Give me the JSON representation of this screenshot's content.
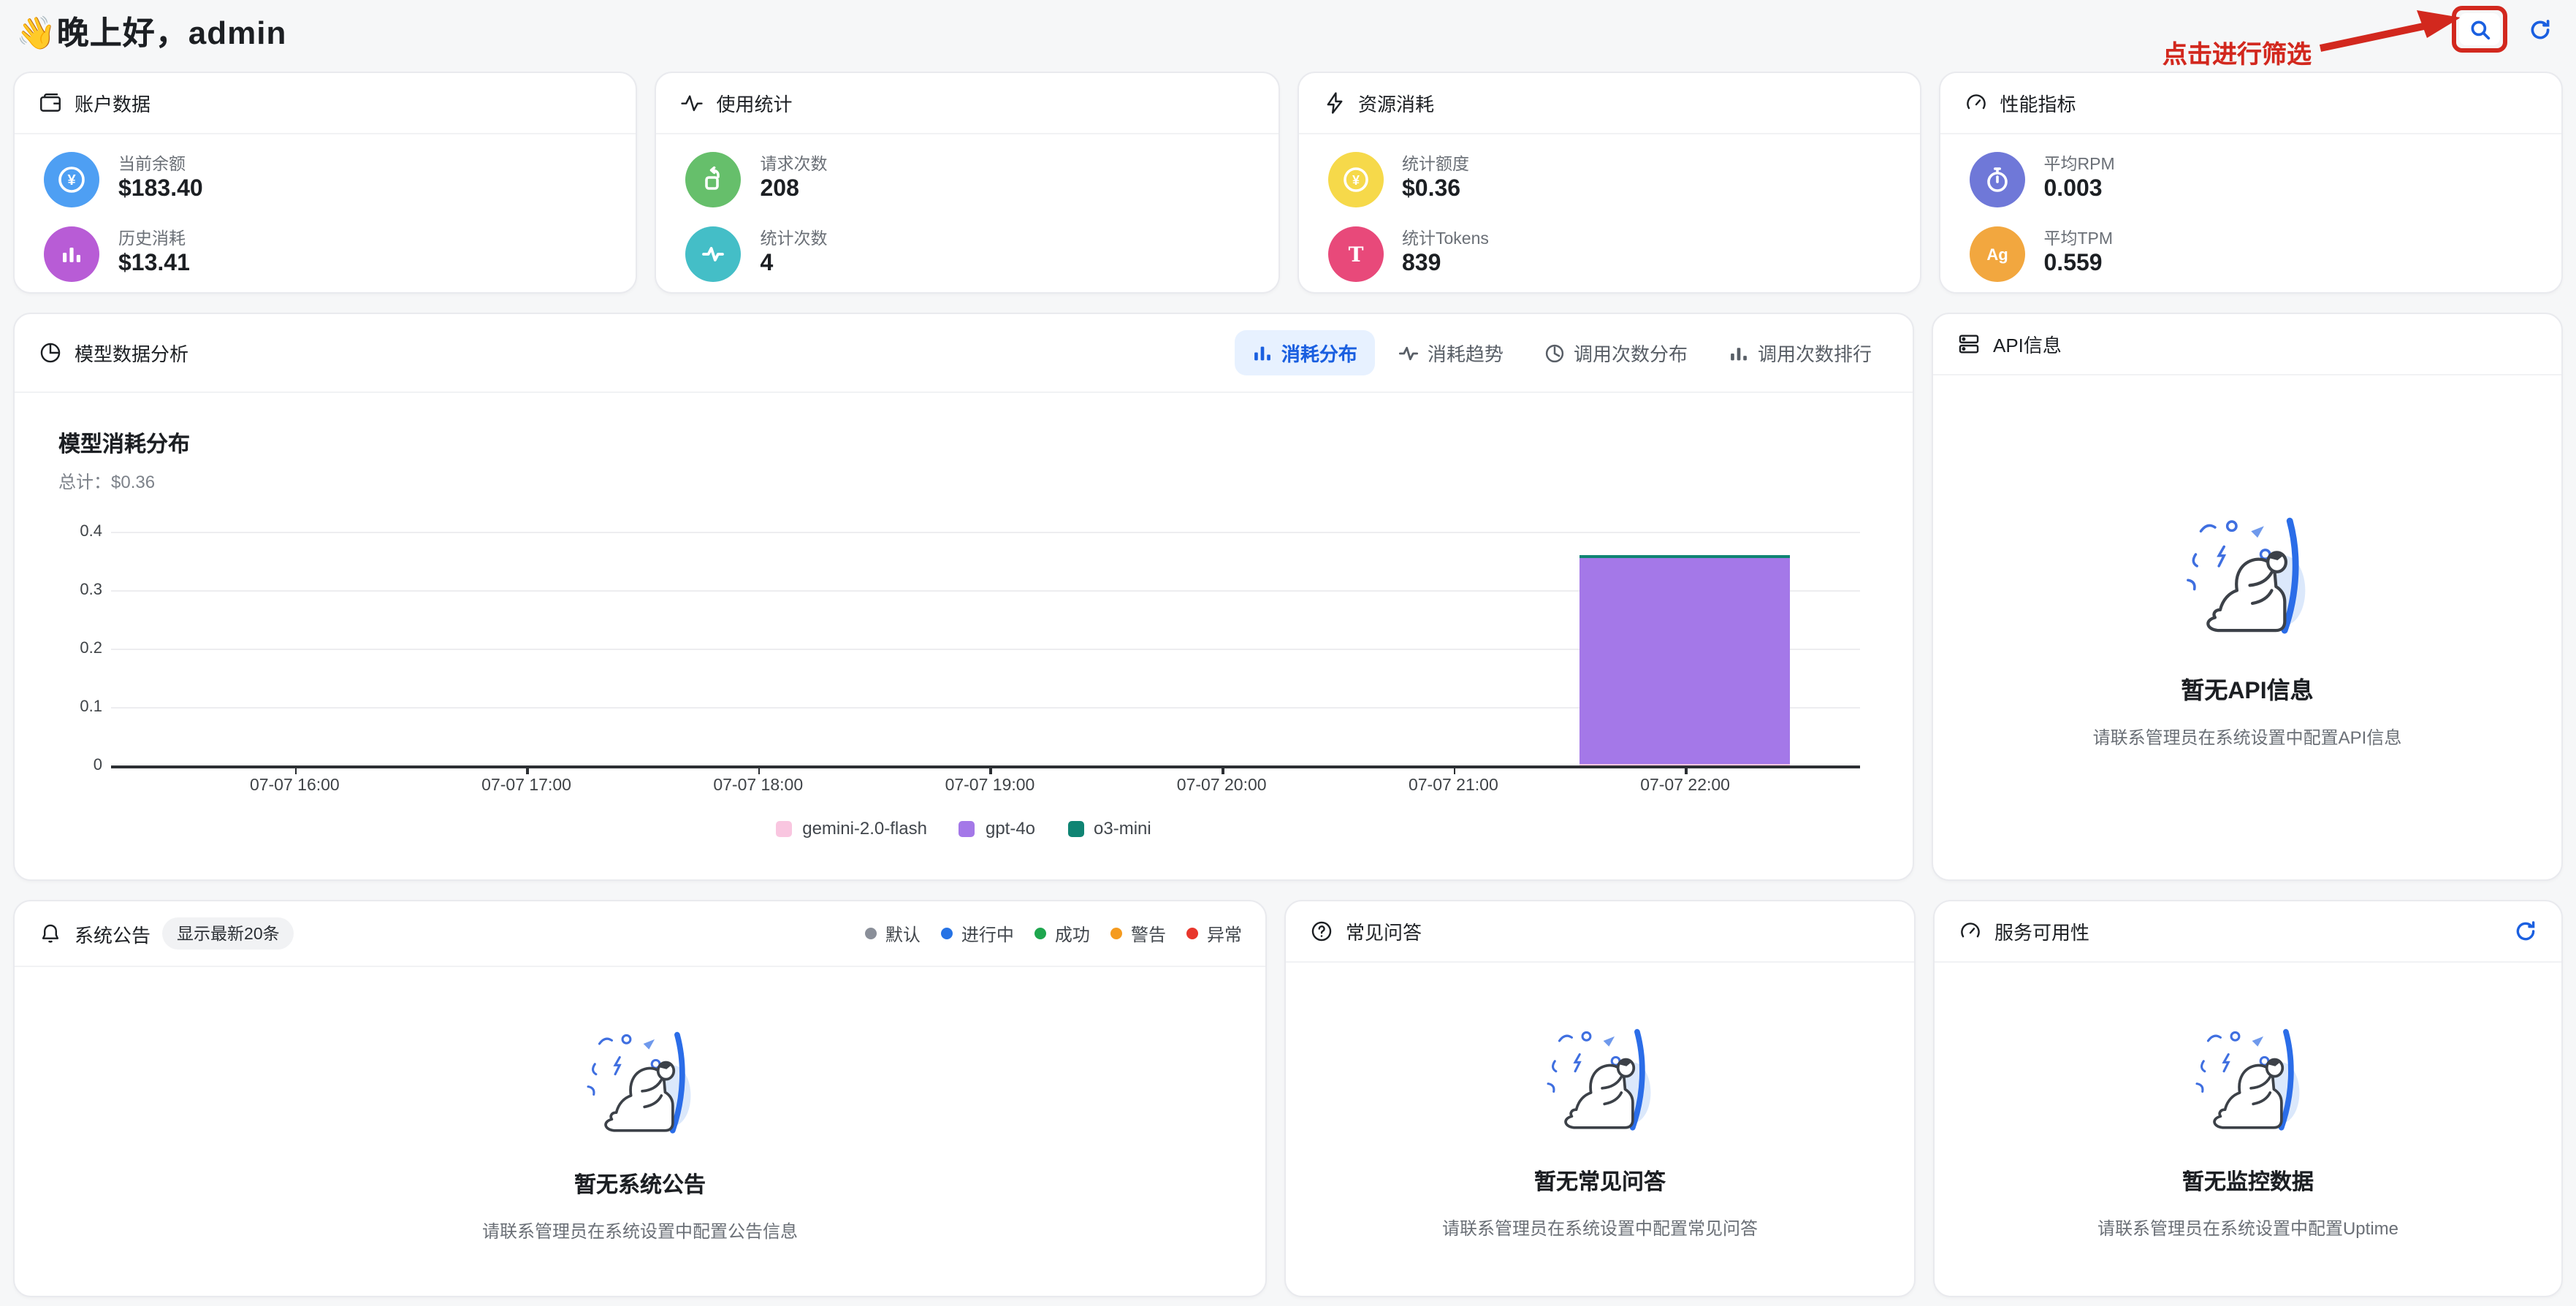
{
  "page": {
    "greeting": "👋晚上好，admin"
  },
  "topbar": {
    "annotation": "点击进行筛选",
    "accent_red": "#d2281e",
    "icon_blue": "#1a5fe0",
    "search_icon": "search-icon",
    "refresh_icon": "refresh-icon"
  },
  "stat_cards": [
    {
      "title": "账户数据",
      "icon": "wallet-icon",
      "items": [
        {
          "label": "当前余额",
          "value": "$183.40",
          "color": "#4e9ff3",
          "icon": "currency-circle-icon"
        },
        {
          "label": "历史消耗",
          "value": "$13.41",
          "color": "#b85cd6",
          "icon": "bar-chart-icon"
        }
      ]
    },
    {
      "title": "使用统计",
      "icon": "activity-icon",
      "items": [
        {
          "label": "请求次数",
          "value": "208",
          "color": "#66bf6b",
          "icon": "request-arrow-icon"
        },
        {
          "label": "统计次数",
          "value": "4",
          "color": "#44bec7",
          "icon": "pulse-icon"
        }
      ]
    },
    {
      "title": "资源消耗",
      "icon": "lightning-icon",
      "items": [
        {
          "label": "统计额度",
          "value": "$0.36",
          "color": "#f6d94a",
          "icon": "coin-icon"
        },
        {
          "label": "统计Tokens",
          "value": "839",
          "color": "#e8497a",
          "icon": "token-t-icon"
        }
      ]
    },
    {
      "title": "性能指标",
      "icon": "gauge-icon",
      "items": [
        {
          "label": "平均RPM",
          "value": "0.003",
          "color": "#6f78d8",
          "icon": "stopwatch-icon"
        },
        {
          "label": "平均TPM",
          "value": "0.559",
          "color": "#f2a73f",
          "icon": "ag-icon"
        }
      ]
    }
  ],
  "model_analysis": {
    "title": "模型数据分析",
    "icon": "pie-chart-icon",
    "tabs": [
      {
        "label": "消耗分布",
        "active": true,
        "icon": "bar-chart-icon"
      },
      {
        "label": "消耗趋势",
        "active": false,
        "icon": "pulse-icon"
      },
      {
        "label": "调用次数分布",
        "active": false,
        "icon": "clock-pie-icon"
      },
      {
        "label": "调用次数排行",
        "active": false,
        "icon": "ranking-bars-icon"
      }
    ]
  },
  "chart_data": {
    "type": "bar",
    "stacked": true,
    "title": "模型消耗分布",
    "subtitle_label": "总计：",
    "total": "$0.36",
    "x": [
      "07-07 16:00",
      "07-07 17:00",
      "07-07 18:00",
      "07-07 19:00",
      "07-07 20:00",
      "07-07 21:00",
      "07-07 22:00"
    ],
    "series": [
      {
        "name": "gemini-2.0-flash",
        "color": "#f9c6e0",
        "values": [
          0,
          0,
          0,
          0,
          0,
          0,
          0.002
        ]
      },
      {
        "name": "gpt-4o",
        "color": "#a478e8",
        "values": [
          0,
          0,
          0,
          0,
          0,
          0,
          0.352
        ]
      },
      {
        "name": "o3-mini",
        "color": "#0f8473",
        "values": [
          0,
          0,
          0,
          0,
          0,
          0,
          0.006
        ]
      }
    ],
    "ylim": [
      0,
      0.4
    ],
    "yticks": [
      0,
      0.1,
      0.2,
      0.3,
      0.4
    ],
    "legend_position": "bottom",
    "grid": true
  },
  "api_info": {
    "title": "API信息",
    "icon": "api-card-icon",
    "empty_title": "暂无API信息",
    "empty_desc": "请联系管理员在系统设置中配置API信息"
  },
  "announcements": {
    "title": "系统公告",
    "icon": "bell-icon",
    "badge": "显示最新20条",
    "legend": [
      {
        "label": "默认",
        "color": "#8a8f99"
      },
      {
        "label": "进行中",
        "color": "#2673e5"
      },
      {
        "label": "成功",
        "color": "#1ea64e"
      },
      {
        "label": "警告",
        "color": "#f59b1f"
      },
      {
        "label": "异常",
        "color": "#e8362c"
      }
    ],
    "empty_title": "暂无系统公告",
    "empty_desc": "请联系管理员在系统设置中配置公告信息"
  },
  "faq": {
    "title": "常见问答",
    "icon": "question-circle-icon",
    "empty_title": "暂无常见问答",
    "empty_desc": "请联系管理员在系统设置中配置常见问答"
  },
  "uptime": {
    "title": "服务可用性",
    "icon": "gauge-icon",
    "refresh_icon": "refresh-icon",
    "empty_title": "暂无监控数据",
    "empty_desc": "请联系管理员在系统设置中配置Uptime"
  }
}
